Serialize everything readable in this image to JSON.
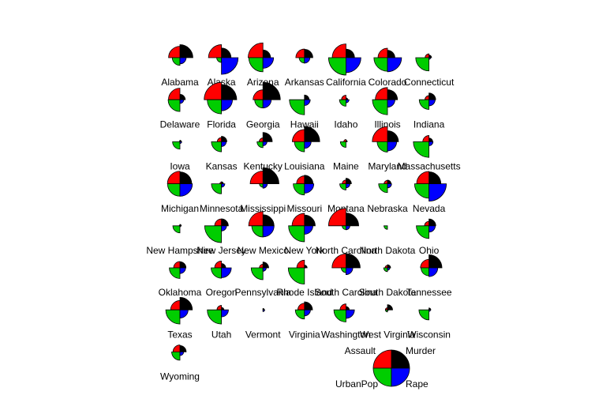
{
  "chart_data": {
    "type": "segments",
    "categories": [
      "Alabama",
      "Alaska",
      "Arizona",
      "Arkansas",
      "California",
      "Colorado",
      "Connecticut",
      "Delaware",
      "Florida",
      "Georgia",
      "Hawaii",
      "Idaho",
      "Illinois",
      "Indiana",
      "Iowa",
      "Kansas",
      "Kentucky",
      "Louisiana",
      "Maine",
      "Maryland",
      "Massachusetts",
      "Michigan",
      "Minnesota",
      "Mississippi",
      "Missouri",
      "Montana",
      "Nebraska",
      "Nevada",
      "New Hampshire",
      "New Jersey",
      "New Mexico",
      "New York",
      "North Carolina",
      "North Dakota",
      "Ohio",
      "Oklahoma",
      "Oregon",
      "Pennsylvania",
      "Rhode Island",
      "South Carolina",
      "South Dakota",
      "Tennessee",
      "Texas",
      "Utah",
      "Vermont",
      "Virginia",
      "Washington",
      "West Virginia",
      "Wisconsin",
      "Wyoming"
    ],
    "series": [
      {
        "name": "Murder",
        "color": "#000000",
        "values": [
          13.2,
          10.0,
          8.1,
          8.8,
          9.0,
          7.9,
          3.3,
          5.9,
          15.4,
          17.4,
          5.3,
          2.6,
          10.4,
          7.2,
          2.2,
          6.0,
          9.7,
          15.4,
          2.1,
          11.3,
          4.4,
          12.1,
          2.7,
          16.1,
          9.0,
          6.0,
          4.3,
          12.2,
          2.1,
          7.4,
          11.4,
          11.1,
          13.0,
          0.8,
          7.3,
          6.6,
          4.9,
          6.3,
          3.4,
          14.4,
          3.8,
          13.2,
          12.7,
          3.2,
          2.2,
          8.5,
          4.0,
          5.7,
          2.6,
          6.8
        ]
      },
      {
        "name": "Assault",
        "color": "#ff0000",
        "values": [
          236,
          263,
          294,
          190,
          276,
          204,
          110,
          238,
          335,
          211,
          46,
          120,
          249,
          113,
          56,
          115,
          109,
          249,
          83,
          300,
          149,
          255,
          72,
          259,
          178,
          109,
          102,
          252,
          57,
          159,
          285,
          254,
          337,
          45,
          120,
          151,
          159,
          106,
          174,
          279,
          86,
          188,
          201,
          120,
          48,
          156,
          145,
          81,
          53,
          161
        ]
      },
      {
        "name": "UrbanPop",
        "color": "#00cd00",
        "values": [
          58,
          48,
          80,
          50,
          91,
          78,
          77,
          72,
          80,
          60,
          83,
          54,
          83,
          65,
          57,
          66,
          52,
          66,
          51,
          67,
          85,
          74,
          66,
          44,
          70,
          53,
          62,
          81,
          56,
          89,
          70,
          86,
          45,
          44,
          75,
          68,
          67,
          72,
          87,
          48,
          45,
          59,
          80,
          80,
          32,
          63,
          73,
          39,
          66,
          60
        ]
      },
      {
        "name": "Rape",
        "color": "#0000ff",
        "values": [
          21.2,
          44.5,
          31.0,
          19.5,
          40.6,
          38.7,
          11.1,
          15.8,
          31.9,
          25.8,
          20.2,
          14.2,
          24.0,
          21.0,
          11.3,
          18.0,
          16.3,
          22.2,
          7.8,
          27.8,
          16.3,
          35.1,
          14.9,
          17.1,
          28.2,
          16.4,
          16.5,
          46.0,
          9.5,
          18.8,
          32.1,
          26.1,
          16.1,
          7.3,
          21.4,
          20.0,
          29.3,
          14.9,
          8.3,
          22.5,
          12.8,
          26.9,
          25.5,
          22.9,
          11.2,
          20.7,
          26.2,
          9.3,
          10.8,
          15.6
        ]
      }
    ]
  }
}
